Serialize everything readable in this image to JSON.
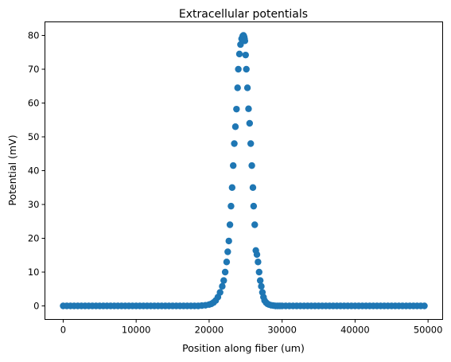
{
  "chart_data": {
    "type": "scatter",
    "title": "Extracellular potentials",
    "xlabel": "Position along fiber (um)",
    "ylabel": "Potential (mV)",
    "xlim": [
      -2500,
      52000
    ],
    "ylim": [
      -4,
      84
    ],
    "xticks": [
      0,
      10000,
      20000,
      30000,
      40000,
      50000
    ],
    "yticks": [
      0,
      10,
      20,
      30,
      40,
      50,
      60,
      70,
      80
    ],
    "grid": false,
    "marker_color": "#1f77b4",
    "series": [
      {
        "x": [
          0,
          500,
          1000,
          1500,
          2000,
          2500,
          3000,
          3500,
          4000,
          4500,
          5000,
          5500,
          6000,
          6500,
          7000,
          7500,
          8000,
          8500,
          9000,
          9500,
          10000,
          10500,
          11000,
          11500,
          12000,
          12500,
          13000,
          13500,
          14000,
          14500,
          15000,
          15500,
          16000,
          16500,
          17000,
          17500,
          18000,
          18500,
          19000,
          19500,
          20000,
          20300,
          20600,
          20900,
          21200,
          21500,
          21800,
          22000,
          22200,
          22400,
          22550,
          22700,
          22850,
          23000,
          23150,
          23300,
          23450,
          23600,
          23750,
          23900,
          24000,
          24150,
          24300,
          24450,
          24600,
          24700,
          24750,
          24800,
          24850,
          24900,
          25000,
          25100,
          25250,
          25400,
          25550,
          25700,
          25850,
          26000,
          26100,
          26250,
          26400,
          26550,
          26700,
          26850,
          27000,
          27150,
          27300,
          27450,
          27600,
          27800,
          28000,
          28200,
          28500,
          28800,
          29100,
          29400,
          29700,
          30000,
          30500,
          31000,
          31500,
          32000,
          32500,
          33000,
          33500,
          34000,
          34500,
          35000,
          35500,
          36000,
          36500,
          37000,
          37500,
          38000,
          38500,
          39000,
          39500,
          40000,
          40500,
          41000,
          41500,
          42000,
          42500,
          43000,
          43500,
          44000,
          44500,
          45000,
          45500,
          46000,
          46500,
          47000,
          47500,
          48000,
          48500,
          49000,
          49500
        ],
        "y": [
          0,
          0,
          0,
          0,
          0,
          0,
          0,
          0,
          0,
          0,
          0,
          0,
          0,
          0,
          0,
          0,
          0,
          0,
          0,
          0,
          0,
          0,
          0,
          0,
          0,
          0,
          0,
          0,
          0,
          0,
          0,
          0,
          0,
          0,
          0,
          0,
          0,
          0,
          0.1,
          0.2,
          0.4,
          0.6,
          1.0,
          1.6,
          2.6,
          4.0,
          5.8,
          7.5,
          10.0,
          13.0,
          16.0,
          19.2,
          24.0,
          29.5,
          35.0,
          41.5,
          48.0,
          53.0,
          58.2,
          64.5,
          70.0,
          74.5,
          77.3,
          79.0,
          79.8,
          80.0,
          79.8,
          79.5,
          79.0,
          78.4,
          74.2,
          70.0,
          64.5,
          58.3,
          54.0,
          48.0,
          41.5,
          35.0,
          29.5,
          24.0,
          16.4,
          15.2,
          13.0,
          10.0,
          7.5,
          5.8,
          4.0,
          2.6,
          1.6,
          1.0,
          0.6,
          0.4,
          0.2,
          0.1,
          0,
          0,
          0,
          0,
          0,
          0,
          0,
          0,
          0,
          0,
          0,
          0,
          0,
          0,
          0,
          0,
          0,
          0,
          0,
          0,
          0,
          0,
          0,
          0,
          0,
          0,
          0,
          0,
          0,
          0,
          0,
          0,
          0,
          0,
          0,
          0,
          0,
          0,
          0,
          0,
          0,
          0,
          0
        ]
      }
    ]
  }
}
